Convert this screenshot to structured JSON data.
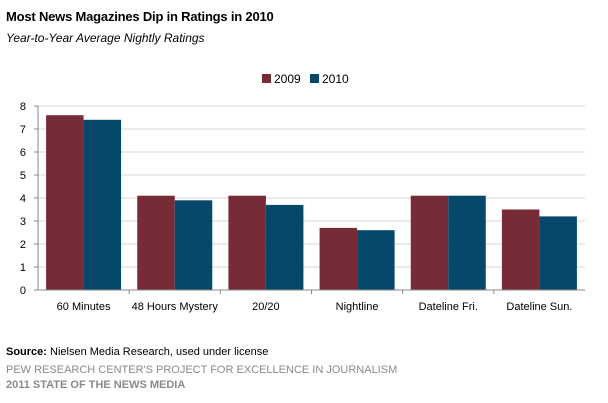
{
  "header": {
    "title": "Most News Magazines Dip in Ratings in 2010",
    "subtitle": "Year-to-Year Average Nightly Ratings"
  },
  "footer": {
    "source_label": "Source:",
    "source_text": " Nielsen Media Research, used under license",
    "line1": "PEW RESEARCH CENTER'S PROJECT FOR EXCELLENCE IN JOURNALISM",
    "line2": "2011 STATE OF THE NEWS MEDIA"
  },
  "chart_data": {
    "type": "bar",
    "title": "Most News Magazines Dip in Ratings in 2010",
    "subtitle": "Year-to-Year Average Nightly Ratings",
    "categories": [
      "60 Minutes",
      "48 Hours Mystery",
      "20/20",
      "Nightline",
      "Dateline Fri.",
      "Dateline Sun."
    ],
    "series": [
      {
        "name": "2009",
        "color": "#772b36",
        "values": [
          7.6,
          4.1,
          4.1,
          2.7,
          4.1,
          3.5
        ]
      },
      {
        "name": "2010",
        "color": "#064869",
        "values": [
          7.4,
          3.9,
          3.7,
          2.6,
          4.1,
          3.2
        ]
      }
    ],
    "yticks": [
      0,
      1,
      2,
      3,
      4,
      5,
      6,
      7,
      8
    ],
    "ylim": [
      0,
      8
    ],
    "xlabel": "",
    "ylabel": "",
    "grid": true,
    "legend_position": "top-center"
  }
}
